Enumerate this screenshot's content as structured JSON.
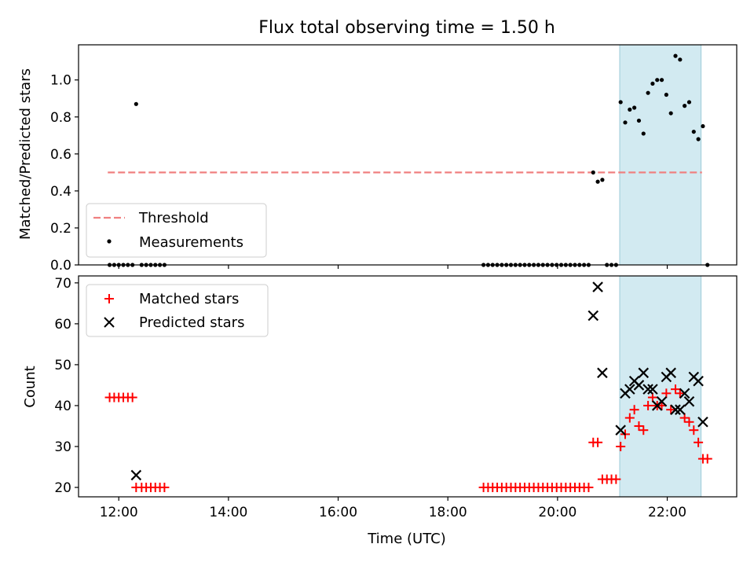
{
  "title": "Flux total observing time = 1.50 h",
  "colors": {
    "highlight": "#add8e6",
    "threshold": "#f08080",
    "matched": "#ff0000",
    "predicted": "#000000",
    "measurement": "#000000"
  },
  "chart_data": [
    {
      "type": "scatter",
      "ylabel": "Matched/Predicted stars",
      "xlim": [
        "11:16",
        "23:16"
      ],
      "ylim": [
        0,
        1.19
      ],
      "yticks": [
        "0.0",
        "0.2",
        "0.4",
        "0.6",
        "0.8",
        "1.0"
      ],
      "highlight_span": [
        "21:08",
        "22:37"
      ],
      "legend": {
        "placement": "lower-left",
        "entries": [
          "Threshold",
          "Measurements"
        ]
      },
      "threshold": {
        "name": "Threshold",
        "value": 0.5,
        "x_range": [
          "11:48",
          "22:38"
        ]
      },
      "series": [
        {
          "name": "Measurements",
          "points": [
            [
              "11:50",
              0
            ],
            [
              "11:55",
              0
            ],
            [
              "12:00",
              0
            ],
            [
              "12:05",
              0
            ],
            [
              "12:10",
              0
            ],
            [
              "12:15",
              0
            ],
            [
              "12:19",
              0.87
            ],
            [
              "12:25",
              0
            ],
            [
              "12:30",
              0
            ],
            [
              "12:35",
              0
            ],
            [
              "12:40",
              0
            ],
            [
              "12:45",
              0
            ],
            [
              "12:50",
              0
            ],
            [
              "18:39",
              0
            ],
            [
              "18:44",
              0
            ],
            [
              "18:49",
              0
            ],
            [
              "18:54",
              0
            ],
            [
              "18:59",
              0
            ],
            [
              "19:04",
              0
            ],
            [
              "19:09",
              0
            ],
            [
              "19:14",
              0
            ],
            [
              "19:19",
              0
            ],
            [
              "19:24",
              0
            ],
            [
              "19:29",
              0
            ],
            [
              "19:34",
              0
            ],
            [
              "19:39",
              0
            ],
            [
              "19:44",
              0
            ],
            [
              "19:49",
              0
            ],
            [
              "19:54",
              0
            ],
            [
              "19:59",
              0
            ],
            [
              "20:04",
              0
            ],
            [
              "20:09",
              0
            ],
            [
              "20:14",
              0
            ],
            [
              "20:19",
              0
            ],
            [
              "20:24",
              0
            ],
            [
              "20:29",
              0
            ],
            [
              "20:34",
              0
            ],
            [
              "20:39",
              0.5
            ],
            [
              "20:44",
              0.45
            ],
            [
              "20:49",
              0.46
            ],
            [
              "20:54",
              0
            ],
            [
              "20:59",
              0
            ],
            [
              "21:04",
              0
            ],
            [
              "21:09",
              0.88
            ],
            [
              "21:14",
              0.77
            ],
            [
              "21:19",
              0.84
            ],
            [
              "21:24",
              0.85
            ],
            [
              "21:29",
              0.78
            ],
            [
              "21:34",
              0.71
            ],
            [
              "21:39",
              0.93
            ],
            [
              "21:44",
              0.98
            ],
            [
              "21:49",
              1.0
            ],
            [
              "21:54",
              1.0
            ],
            [
              "21:59",
              0.92
            ],
            [
              "22:04",
              0.82
            ],
            [
              "22:09",
              1.13
            ],
            [
              "22:14",
              1.11
            ],
            [
              "22:19",
              0.86
            ],
            [
              "22:24",
              0.88
            ],
            [
              "22:29",
              0.72
            ],
            [
              "22:34",
              0.68
            ],
            [
              "22:39",
              0.75
            ],
            [
              "22:44",
              0
            ]
          ]
        }
      ]
    },
    {
      "type": "scatter",
      "xlabel": "Time (UTC)",
      "ylabel": "Count",
      "xlim": [
        "11:16",
        "23:16"
      ],
      "ylim": [
        17.7,
        71.7
      ],
      "yticks": [
        "20",
        "30",
        "40",
        "50",
        "60",
        "70"
      ],
      "xticks": [
        "12:00",
        "14:00",
        "16:00",
        "18:00",
        "20:00",
        "22:00"
      ],
      "highlight_span": [
        "21:08",
        "22:37"
      ],
      "legend": {
        "placement": "upper-left",
        "entries": [
          "Matched stars",
          "Predicted stars"
        ]
      },
      "series": [
        {
          "name": "Matched stars",
          "marker": "+",
          "points": [
            [
              "11:50",
              42
            ],
            [
              "11:55",
              42
            ],
            [
              "12:00",
              42
            ],
            [
              "12:05",
              42
            ],
            [
              "12:10",
              42
            ],
            [
              "12:15",
              42
            ],
            [
              "12:19",
              20
            ],
            [
              "12:25",
              20
            ],
            [
              "12:30",
              20
            ],
            [
              "12:35",
              20
            ],
            [
              "12:40",
              20
            ],
            [
              "12:45",
              20
            ],
            [
              "12:50",
              20
            ],
            [
              "18:39",
              20
            ],
            [
              "18:44",
              20
            ],
            [
              "18:49",
              20
            ],
            [
              "18:54",
              20
            ],
            [
              "18:59",
              20
            ],
            [
              "19:04",
              20
            ],
            [
              "19:09",
              20
            ],
            [
              "19:14",
              20
            ],
            [
              "19:19",
              20
            ],
            [
              "19:24",
              20
            ],
            [
              "19:29",
              20
            ],
            [
              "19:34",
              20
            ],
            [
              "19:39",
              20
            ],
            [
              "19:44",
              20
            ],
            [
              "19:49",
              20
            ],
            [
              "19:54",
              20
            ],
            [
              "19:59",
              20
            ],
            [
              "20:04",
              20
            ],
            [
              "20:09",
              20
            ],
            [
              "20:14",
              20
            ],
            [
              "20:19",
              20
            ],
            [
              "20:24",
              20
            ],
            [
              "20:29",
              20
            ],
            [
              "20:34",
              20
            ],
            [
              "20:39",
              31
            ],
            [
              "20:44",
              31
            ],
            [
              "20:49",
              22
            ],
            [
              "20:54",
              22
            ],
            [
              "20:59",
              22
            ],
            [
              "21:04",
              22
            ],
            [
              "21:09",
              30
            ],
            [
              "21:14",
              33
            ],
            [
              "21:19",
              37
            ],
            [
              "21:24",
              39
            ],
            [
              "21:29",
              35
            ],
            [
              "21:34",
              34
            ],
            [
              "21:39",
              40
            ],
            [
              "21:44",
              42
            ],
            [
              "21:49",
              40
            ],
            [
              "21:54",
              40
            ],
            [
              "21:59",
              43
            ],
            [
              "22:04",
              39
            ],
            [
              "22:09",
              44
            ],
            [
              "22:14",
              43
            ],
            [
              "22:19",
              37
            ],
            [
              "22:24",
              36
            ],
            [
              "22:29",
              34
            ],
            [
              "22:34",
              31
            ],
            [
              "22:39",
              27
            ],
            [
              "22:44",
              27
            ]
          ]
        },
        {
          "name": "Predicted stars",
          "marker": "x",
          "points": [
            [
              "12:19",
              23
            ],
            [
              "20:39",
              62
            ],
            [
              "20:44",
              69
            ],
            [
              "20:49",
              48
            ],
            [
              "21:09",
              34
            ],
            [
              "21:14",
              43
            ],
            [
              "21:19",
              44
            ],
            [
              "21:24",
              46
            ],
            [
              "21:29",
              45
            ],
            [
              "21:34",
              48
            ],
            [
              "21:39",
              44
            ],
            [
              "21:44",
              44
            ],
            [
              "21:49",
              40
            ],
            [
              "21:54",
              41
            ],
            [
              "21:59",
              47
            ],
            [
              "22:04",
              48
            ],
            [
              "22:09",
              39
            ],
            [
              "22:14",
              39
            ],
            [
              "22:19",
              43
            ],
            [
              "22:24",
              41
            ],
            [
              "22:29",
              47
            ],
            [
              "22:34",
              46
            ],
            [
              "22:39",
              36
            ]
          ]
        }
      ]
    }
  ]
}
